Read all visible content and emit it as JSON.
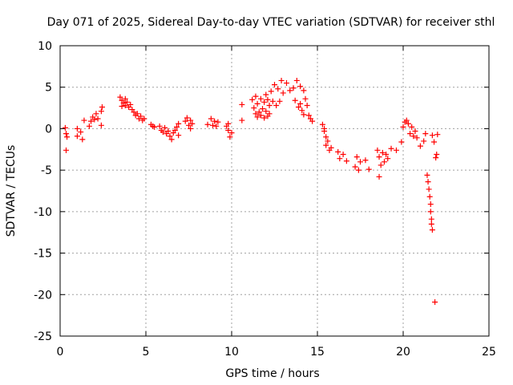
{
  "chart_data": {
    "type": "scatter",
    "title": "Day 071 of 2025, Sidereal Day-to-day VTEC variation (SDTVAR) for receiver sthl",
    "xlabel": "GPS time / hours",
    "ylabel": "SDTVAR / TECUs",
    "xlim": [
      0,
      25
    ],
    "ylim": [
      -25,
      10
    ],
    "xticks": [
      0,
      5,
      10,
      15,
      20,
      25
    ],
    "yticks": [
      10,
      5,
      0,
      -5,
      -10,
      -15,
      -20,
      -25
    ],
    "grid": true,
    "marker": "plus",
    "color": "#ff0000",
    "series": [
      {
        "name": "SDTVAR",
        "points": [
          [
            0.3,
            0.1
          ],
          [
            0.35,
            -0.6
          ],
          [
            0.4,
            -1.0
          ],
          [
            0.35,
            -2.6
          ],
          [
            1.0,
            0.0
          ],
          [
            1.0,
            -0.9
          ],
          [
            1.2,
            -0.4
          ],
          [
            1.3,
            -1.3
          ],
          [
            1.4,
            1.0
          ],
          [
            1.7,
            0.3
          ],
          [
            1.8,
            0.9
          ],
          [
            1.9,
            1.4
          ],
          [
            2.0,
            1.1
          ],
          [
            2.1,
            1.8
          ],
          [
            2.2,
            1.2
          ],
          [
            2.4,
            2.1
          ],
          [
            2.45,
            2.6
          ],
          [
            2.4,
            0.4
          ],
          [
            3.5,
            3.8
          ],
          [
            3.6,
            3.4
          ],
          [
            3.6,
            2.7
          ],
          [
            3.7,
            3.1
          ],
          [
            3.8,
            3.6
          ],
          [
            3.8,
            2.8
          ],
          [
            3.9,
            3.2
          ],
          [
            4.0,
            2.6
          ],
          [
            4.1,
            2.9
          ],
          [
            4.2,
            2.3
          ],
          [
            4.3,
            2.0
          ],
          [
            4.4,
            1.6
          ],
          [
            4.5,
            1.8
          ],
          [
            4.6,
            1.2
          ],
          [
            4.7,
            1.5
          ],
          [
            4.8,
            1.0
          ],
          [
            4.9,
            1.2
          ],
          [
            5.3,
            0.5
          ],
          [
            5.4,
            0.3
          ],
          [
            5.5,
            0.2
          ],
          [
            5.8,
            0.3
          ],
          [
            5.9,
            -0.2
          ],
          [
            6.0,
            -0.4
          ],
          [
            6.1,
            0.1
          ],
          [
            6.2,
            -0.6
          ],
          [
            6.3,
            -0.3
          ],
          [
            6.4,
            -0.9
          ],
          [
            6.5,
            -1.3
          ],
          [
            6.6,
            -0.5
          ],
          [
            6.7,
            -0.2
          ],
          [
            6.8,
            0.2
          ],
          [
            6.9,
            0.6
          ],
          [
            6.9,
            -0.8
          ],
          [
            7.3,
            0.9
          ],
          [
            7.4,
            1.3
          ],
          [
            7.5,
            0.4
          ],
          [
            7.6,
            1.0
          ],
          [
            7.6,
            0.0
          ],
          [
            7.7,
            0.6
          ],
          [
            8.6,
            0.5
          ],
          [
            8.8,
            1.2
          ],
          [
            8.9,
            0.4
          ],
          [
            9.0,
            0.9
          ],
          [
            9.1,
            0.3
          ],
          [
            9.2,
            0.8
          ],
          [
            9.7,
            0.3
          ],
          [
            9.8,
            -0.2
          ],
          [
            9.8,
            0.6
          ],
          [
            9.9,
            -1.0
          ],
          [
            10.0,
            -0.5
          ],
          [
            10.6,
            1.0
          ],
          [
            10.6,
            2.9
          ],
          [
            11.2,
            3.5
          ],
          [
            11.3,
            2.5
          ],
          [
            11.4,
            1.8
          ],
          [
            11.4,
            3.9
          ],
          [
            11.5,
            1.4
          ],
          [
            11.5,
            3.0
          ],
          [
            11.6,
            2.0
          ],
          [
            11.7,
            3.6
          ],
          [
            11.7,
            1.6
          ],
          [
            11.8,
            2.4
          ],
          [
            11.9,
            1.3
          ],
          [
            11.9,
            3.2
          ],
          [
            12.0,
            4.1
          ],
          [
            12.0,
            2.1
          ],
          [
            12.1,
            1.5
          ],
          [
            12.1,
            3.5
          ],
          [
            12.2,
            2.8
          ],
          [
            12.2,
            1.8
          ],
          [
            12.3,
            4.5
          ],
          [
            12.4,
            3.3
          ],
          [
            12.5,
            5.3
          ],
          [
            12.6,
            2.8
          ],
          [
            12.7,
            4.8
          ],
          [
            12.8,
            3.3
          ],
          [
            12.9,
            5.8
          ],
          [
            13.0,
            4.3
          ],
          [
            13.2,
            5.5
          ],
          [
            13.4,
            4.6
          ],
          [
            13.6,
            4.9
          ],
          [
            13.7,
            3.4
          ],
          [
            13.8,
            5.8
          ],
          [
            13.9,
            2.6
          ],
          [
            14.0,
            5.1
          ],
          [
            14.0,
            3.0
          ],
          [
            14.1,
            2.2
          ],
          [
            14.2,
            4.6
          ],
          [
            14.2,
            1.7
          ],
          [
            14.3,
            3.6
          ],
          [
            14.4,
            2.8
          ],
          [
            14.5,
            1.6
          ],
          [
            14.6,
            1.2
          ],
          [
            14.7,
            0.9
          ],
          [
            15.3,
            0.5
          ],
          [
            15.4,
            -0.3
          ],
          [
            15.4,
            0.0
          ],
          [
            15.5,
            -1.0
          ],
          [
            15.5,
            -2.0
          ],
          [
            15.6,
            -1.5
          ],
          [
            15.7,
            -2.6
          ],
          [
            15.8,
            -2.3
          ],
          [
            16.2,
            -2.8
          ],
          [
            16.3,
            -3.6
          ],
          [
            16.5,
            -3.1
          ],
          [
            16.7,
            -3.9
          ],
          [
            17.2,
            -4.6
          ],
          [
            17.3,
            -3.4
          ],
          [
            17.4,
            -5.0
          ],
          [
            17.5,
            -4.0
          ],
          [
            17.8,
            -3.8
          ],
          [
            18.0,
            -4.9
          ],
          [
            18.5,
            -2.6
          ],
          [
            18.6,
            -3.4
          ],
          [
            18.6,
            -5.8
          ],
          [
            18.7,
            -4.4
          ],
          [
            18.8,
            -2.9
          ],
          [
            18.9,
            -4.0
          ],
          [
            19.0,
            -3.1
          ],
          [
            19.1,
            -3.6
          ],
          [
            19.3,
            -2.4
          ],
          [
            19.6,
            -2.6
          ],
          [
            19.9,
            -1.6
          ],
          [
            20.0,
            0.2
          ],
          [
            20.1,
            0.8
          ],
          [
            20.2,
            1.0
          ],
          [
            20.3,
            0.6
          ],
          [
            20.4,
            -0.6
          ],
          [
            20.5,
            0.2
          ],
          [
            20.6,
            -0.9
          ],
          [
            20.7,
            -0.3
          ],
          [
            20.8,
            -1.1
          ],
          [
            21.0,
            -2.1
          ],
          [
            21.2,
            -1.5
          ],
          [
            21.3,
            -0.6
          ],
          [
            21.4,
            -5.6
          ],
          [
            21.45,
            -6.4
          ],
          [
            21.5,
            -7.3
          ],
          [
            21.55,
            -8.2
          ],
          [
            21.6,
            -9.1
          ],
          [
            21.6,
            -10.0
          ],
          [
            21.65,
            -10.9
          ],
          [
            21.65,
            -11.5
          ],
          [
            21.7,
            -12.2
          ],
          [
            21.7,
            -0.8
          ],
          [
            21.8,
            -1.6
          ],
          [
            21.9,
            -3.5
          ],
          [
            21.95,
            -3.1
          ],
          [
            22.0,
            -0.7
          ],
          [
            21.85,
            -20.9
          ]
        ]
      }
    ]
  }
}
